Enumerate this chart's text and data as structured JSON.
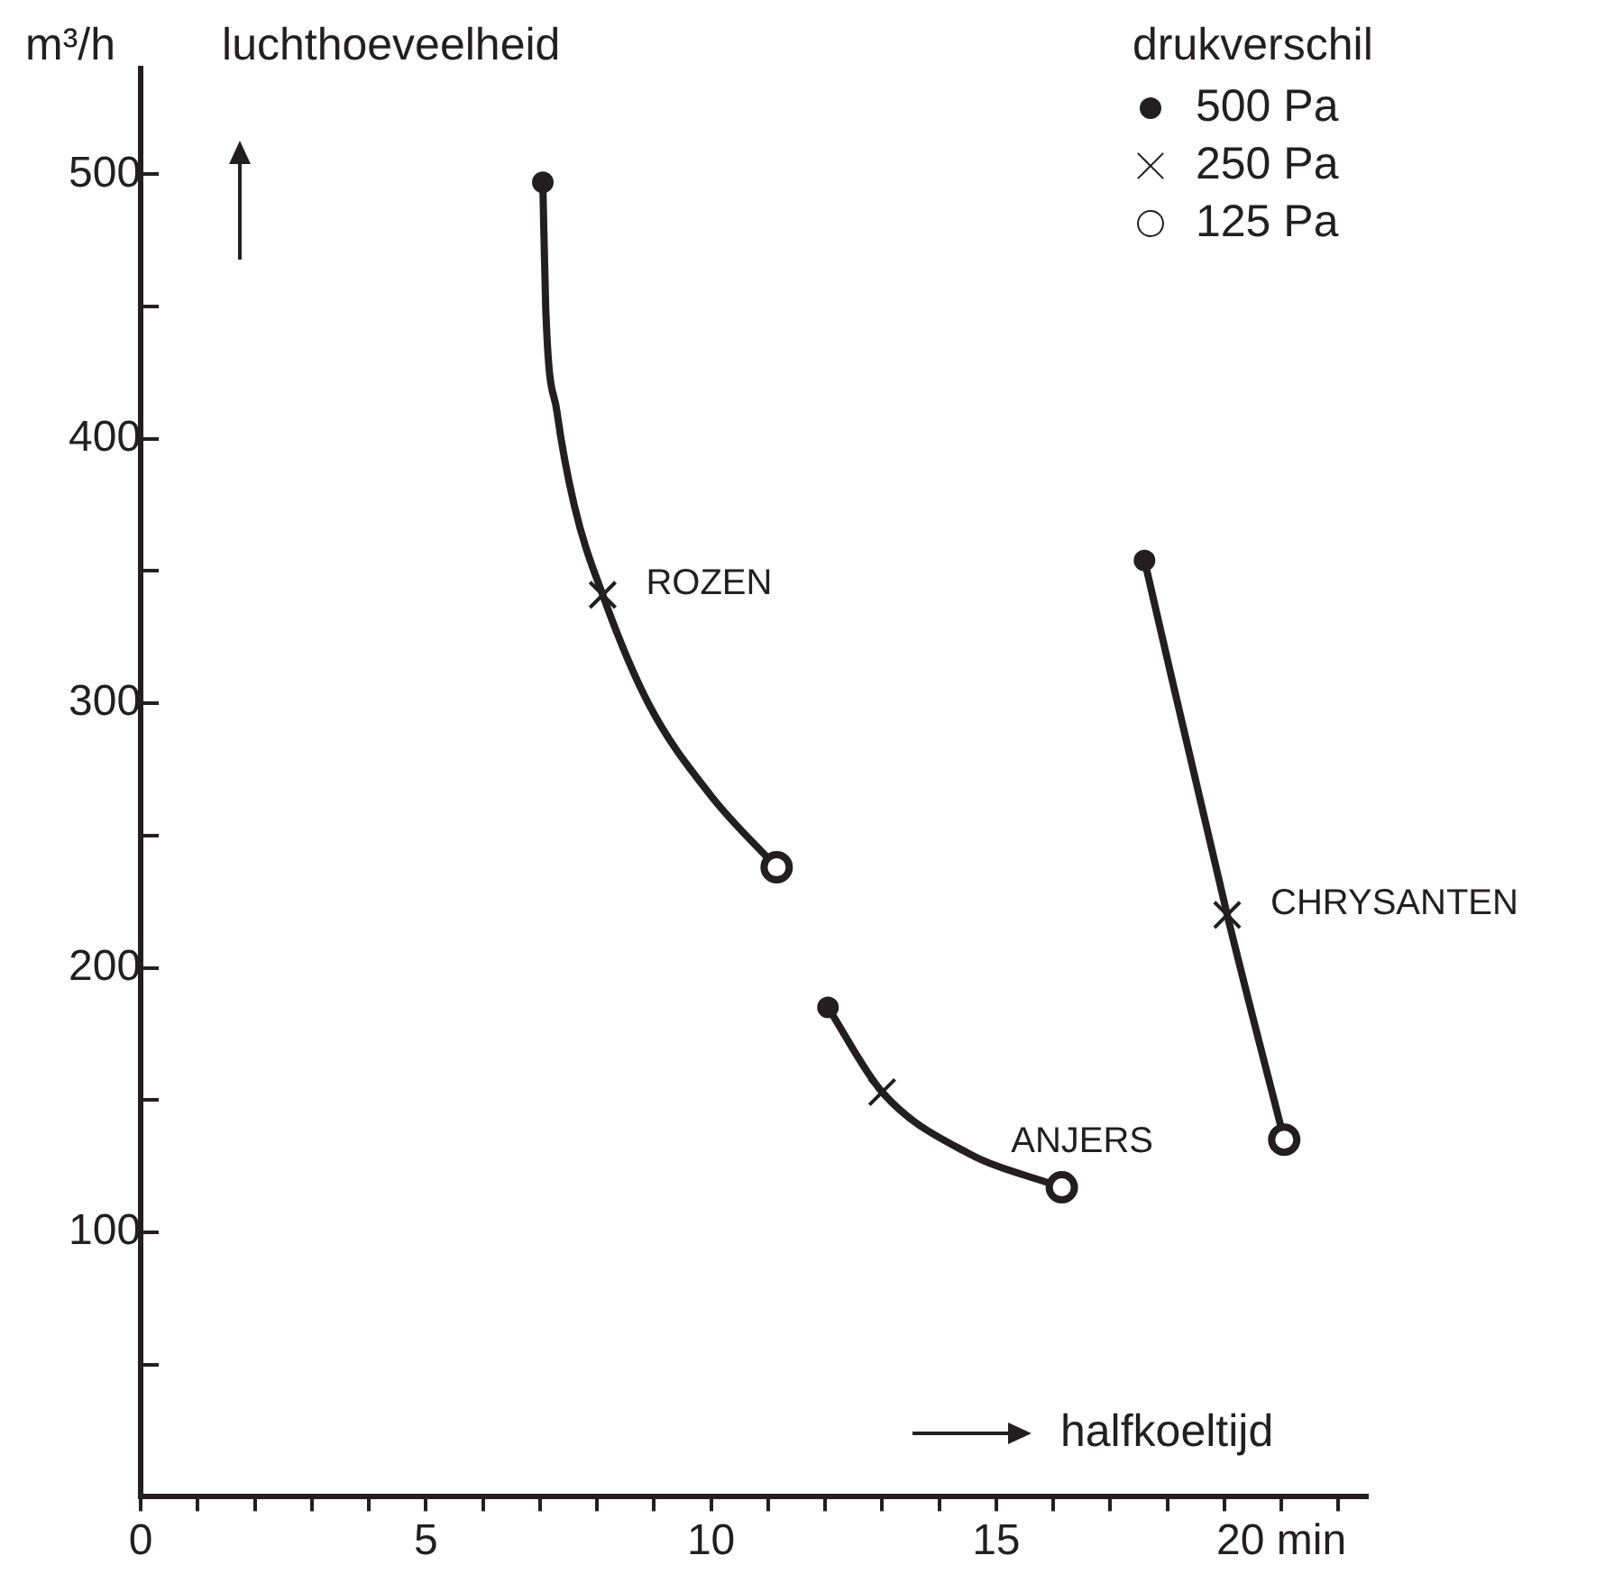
{
  "chart_data": {
    "type": "line",
    "ylabel": "luchthoeveelheid",
    "xlabel": "halfkoeltijd",
    "legend_title": "drukverschil",
    "annotations": [
      "m³/h"
    ],
    "xlim": [
      0,
      21.5
    ],
    "xticks": [
      0,
      {
        "value": 1,
        "label": null
      },
      {
        "value": 2,
        "label": null
      },
      {
        "value": 3,
        "label": null
      },
      {
        "value": 4,
        "label": null
      },
      5,
      {
        "value": 6,
        "label": null
      },
      {
        "value": 7,
        "label": null
      },
      {
        "value": 8,
        "label": null
      },
      {
        "value": 9,
        "label": null
      },
      10,
      {
        "value": 11,
        "label": null
      },
      {
        "value": 12,
        "label": null
      },
      {
        "value": 13,
        "label": null
      },
      {
        "value": 14,
        "label": null
      },
      15,
      {
        "value": 16,
        "label": null
      },
      {
        "value": 17,
        "label": null
      },
      {
        "value": 18,
        "label": null
      },
      {
        "value": 19,
        "label": null
      },
      {
        "value": 20,
        "label": "20 min"
      },
      {
        "value": 21,
        "label": null
      }
    ],
    "ylim": [
      0,
      540
    ],
    "yticks": [
      {
        "value": 50,
        "label": null
      },
      100,
      {
        "value": 150,
        "label": null
      },
      200,
      {
        "value": 250,
        "label": null
      },
      300,
      {
        "value": 350,
        "label": null
      },
      400,
      {
        "value": 450,
        "label": null
      },
      500
    ],
    "grid": false,
    "legend": "top right",
    "line_style": "solid",
    "series": [
      {
        "name": "ROZEN",
        "type": "line",
        "marker": "none",
        "color": "#231f20",
        "x": [
          7.05,
          7.1,
          7.3,
          7.6,
          8.1,
          8.9,
          10,
          11.15
        ],
        "values": [
          497,
          450,
          410,
          375,
          341,
          300,
          265,
          238
        ]
      },
      {
        "name": "ANJERS",
        "type": "line",
        "marker": "none",
        "color": "#231f20",
        "x": [
          12.05,
          13,
          14.5,
          16.15
        ],
        "values": [
          185,
          153,
          130,
          117
        ]
      },
      {
        "name": "CHRYSANTEN",
        "type": "line",
        "marker": "none",
        "color": "#231f20",
        "x": [
          17.6,
          19.05,
          20.05
        ],
        "values": [
          354,
          220,
          135
        ]
      },
      {
        "name": "500 Pa",
        "type": "scatter",
        "marker": "circle",
        "color": "#231f20",
        "x": [
          7.05,
          12.05,
          17.6
        ],
        "values": [
          497,
          185,
          354
        ]
      },
      {
        "name": "250 Pa",
        "type": "scatter",
        "marker": "cross",
        "color": "#231f20",
        "x": [
          8.1,
          13,
          19.05
        ],
        "values": [
          341,
          153,
          220
        ]
      },
      {
        "name": "125 Pa",
        "type": "scatter",
        "marker": "open_circle",
        "color": "#231f20",
        "x": [
          11.15,
          16.15,
          20.05
        ],
        "values": [
          238,
          117,
          135
        ]
      }
    ]
  }
}
